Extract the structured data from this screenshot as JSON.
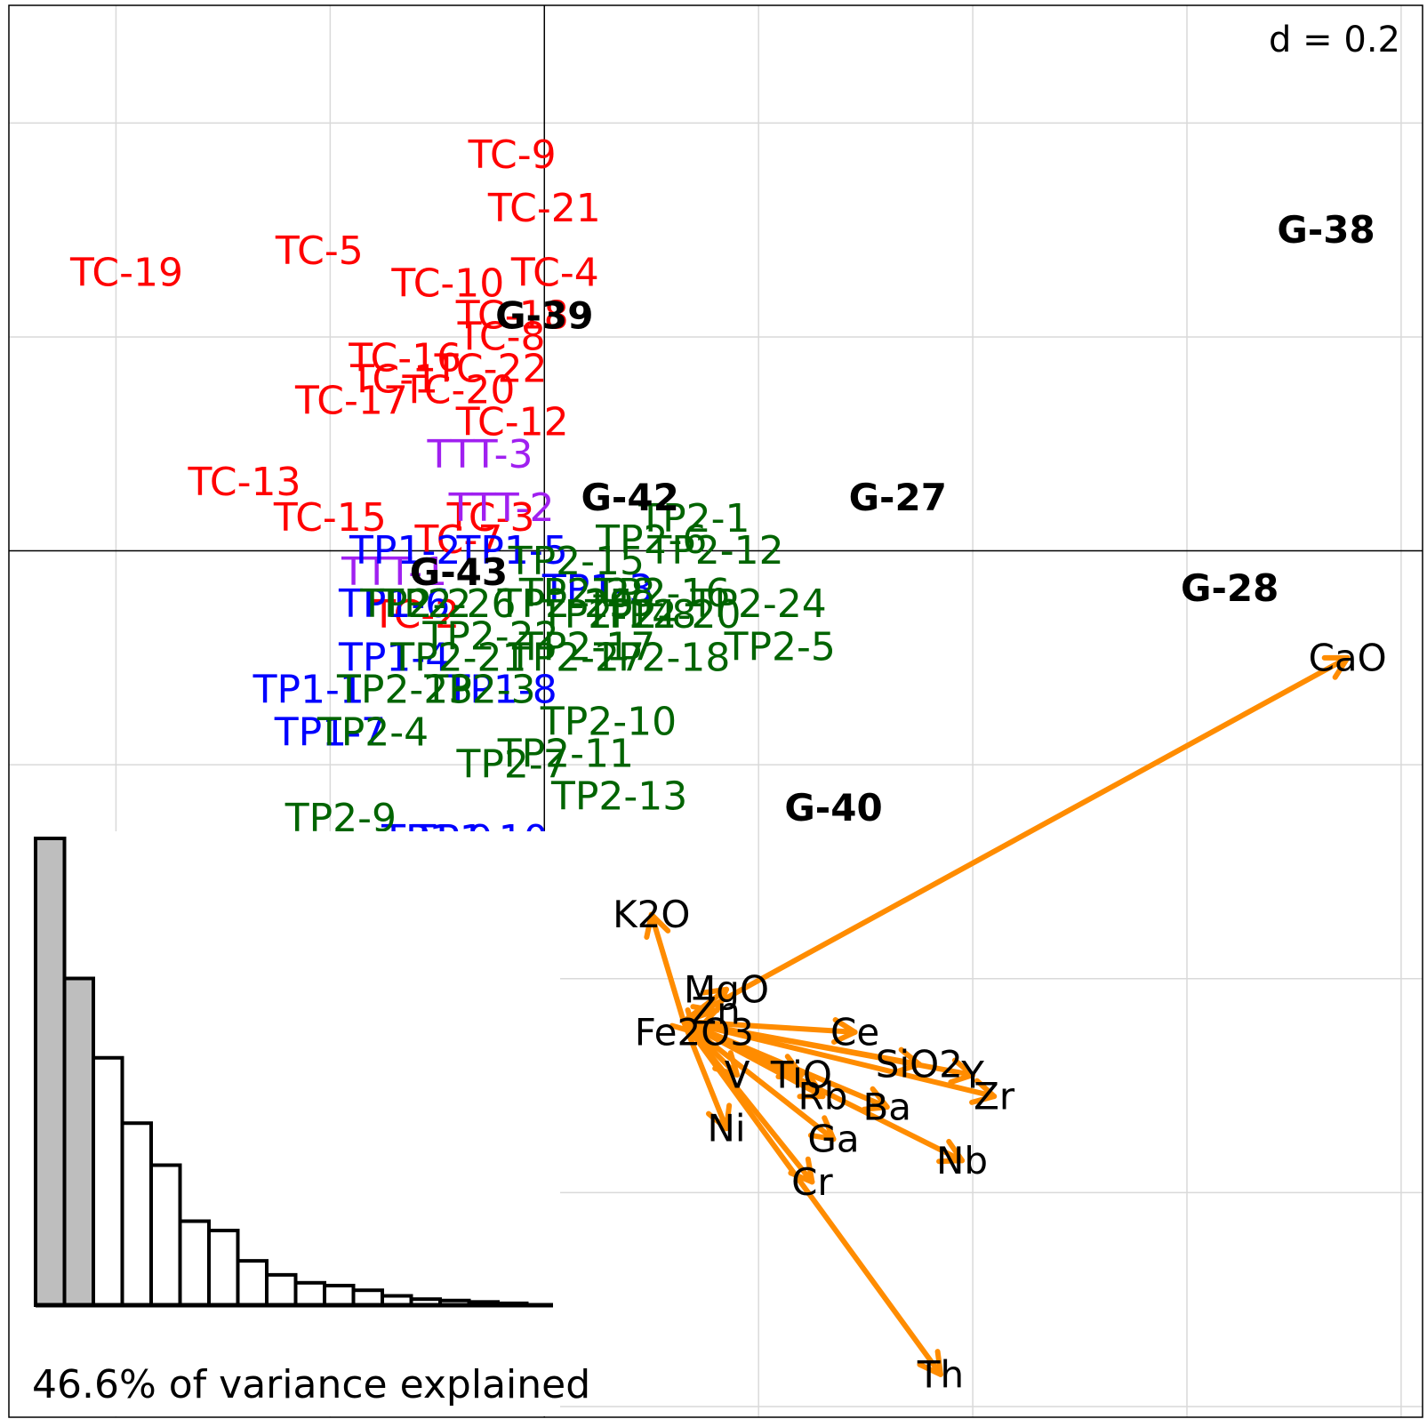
{
  "chart_data": {
    "type": "scatter",
    "title": "",
    "xlabel": "",
    "ylabel": "",
    "xlim": [
      -0.5,
      0.82
    ],
    "ylim": [
      -0.81,
      0.51
    ],
    "grid": true,
    "scale_label": "d = 0.2",
    "colors": {
      "TC": "#ff0000",
      "TTT": "#a020f0",
      "TP1": "#0000ff",
      "TP2": "#006400",
      "group": "#000000",
      "variable": "#000000",
      "arrow": "#ff8c00"
    },
    "points": [
      {
        "label": "TC-9",
        "x": -0.03,
        "y": 0.37,
        "series": "TC"
      },
      {
        "label": "TC-21",
        "x": 0.0,
        "y": 0.32,
        "series": "TC"
      },
      {
        "label": "TC-5",
        "x": -0.21,
        "y": 0.28,
        "series": "TC"
      },
      {
        "label": "TC-19",
        "x": -0.39,
        "y": 0.26,
        "series": "TC"
      },
      {
        "label": "TC-4",
        "x": 0.01,
        "y": 0.26,
        "series": "TC"
      },
      {
        "label": "TC-10",
        "x": -0.09,
        "y": 0.25,
        "series": "TC"
      },
      {
        "label": "TC-18",
        "x": -0.03,
        "y": 0.22,
        "series": "TC"
      },
      {
        "label": "TC-8",
        "x": -0.04,
        "y": 0.2,
        "series": "TC"
      },
      {
        "label": "TC-16",
        "x": -0.13,
        "y": 0.18,
        "series": "TC"
      },
      {
        "label": "TC-22",
        "x": -0.05,
        "y": 0.17,
        "series": "TC"
      },
      {
        "label": "TC-1",
        "x": -0.14,
        "y": 0.16,
        "series": "TC"
      },
      {
        "label": "TC-20",
        "x": -0.08,
        "y": 0.15,
        "series": "TC"
      },
      {
        "label": "TC-17",
        "x": -0.18,
        "y": 0.14,
        "series": "TC"
      },
      {
        "label": "TC-12",
        "x": -0.03,
        "y": 0.12,
        "series": "TC"
      },
      {
        "label": "TC-13",
        "x": -0.28,
        "y": 0.064,
        "series": "TC"
      },
      {
        "label": "TC-15",
        "x": -0.2,
        "y": 0.031,
        "series": "TC"
      },
      {
        "label": "TC-3",
        "x": -0.05,
        "y": 0.031,
        "series": "TC"
      },
      {
        "label": "TC-7",
        "x": -0.08,
        "y": 0.01,
        "series": "TC"
      },
      {
        "label": "TC-2",
        "x": -0.12,
        "y": -0.06,
        "series": "TC"
      },
      {
        "label": "TTT-3",
        "x": -0.06,
        "y": 0.09,
        "series": "TTT"
      },
      {
        "label": "TTT-2",
        "x": -0.04,
        "y": 0.04,
        "series": "TTT"
      },
      {
        "label": "TTT-1",
        "x": -0.14,
        "y": -0.02,
        "series": "TTT"
      },
      {
        "label": "TP1-1",
        "x": -0.22,
        "y": -0.13,
        "series": "TP1"
      },
      {
        "label": "TP1-2",
        "x": -0.13,
        "y": 0.0,
        "series": "TP1"
      },
      {
        "label": "TP1-3",
        "x": 0.05,
        "y": -0.036,
        "series": "TP1"
      },
      {
        "label": "TP1-4",
        "x": -0.14,
        "y": -0.1,
        "series": "TP1"
      },
      {
        "label": "TP1-5",
        "x": -0.03,
        "y": 0.0,
        "series": "TP1"
      },
      {
        "label": "TP1-6",
        "x": -0.14,
        "y": -0.05,
        "series": "TP1"
      },
      {
        "label": "TP1-7",
        "x": -0.2,
        "y": -0.17,
        "series": "TP1"
      },
      {
        "label": "TP1-8",
        "x": -0.04,
        "y": -0.13,
        "series": "TP1"
      },
      {
        "label": "TP1-9",
        "x": -0.1,
        "y": -0.27,
        "series": "TP1"
      },
      {
        "label": "TP1-10",
        "x": -0.06,
        "y": -0.27,
        "series": "TP1"
      },
      {
        "label": "TP2-1",
        "x": 0.14,
        "y": 0.03,
        "series": "TP2"
      },
      {
        "label": "TP2-2",
        "x": -0.12,
        "y": -0.05,
        "series": "TP2"
      },
      {
        "label": "TP2-3",
        "x": -0.06,
        "y": -0.13,
        "series": "TP2"
      },
      {
        "label": "TP2-4",
        "x": -0.16,
        "y": -0.17,
        "series": "TP2"
      },
      {
        "label": "TP2-5",
        "x": 0.22,
        "y": -0.09,
        "series": "TP2"
      },
      {
        "label": "TP2-6",
        "x": 0.1,
        "y": 0.01,
        "series": "TP2"
      },
      {
        "label": "TP2-7",
        "x": -0.03,
        "y": -0.2,
        "series": "TP2"
      },
      {
        "label": "TP2-8",
        "x": 0.09,
        "y": -0.06,
        "series": "TP2"
      },
      {
        "label": "TP2-9",
        "x": -0.19,
        "y": -0.25,
        "series": "TP2"
      },
      {
        "label": "TP2-10",
        "x": 0.06,
        "y": -0.16,
        "series": "TP2"
      },
      {
        "label": "TP2-11",
        "x": 0.02,
        "y": -0.19,
        "series": "TP2"
      },
      {
        "label": "TP2-12",
        "x": 0.16,
        "y": 0.0,
        "series": "TP2"
      },
      {
        "label": "TP2-13",
        "x": 0.07,
        "y": -0.23,
        "series": "TP2"
      },
      {
        "label": "TP2-14",
        "x": 0.06,
        "y": -0.06,
        "series": "TP2"
      },
      {
        "label": "TP2-15",
        "x": 0.03,
        "y": -0.01,
        "series": "TP2"
      },
      {
        "label": "TP2-16",
        "x": 0.11,
        "y": -0.04,
        "series": "TP2"
      },
      {
        "label": "TP2-17",
        "x": 0.04,
        "y": -0.09,
        "series": "TP2"
      },
      {
        "label": "TP2-18",
        "x": 0.11,
        "y": -0.1,
        "series": "TP2"
      },
      {
        "label": "TP2-19",
        "x": 0.02,
        "y": -0.05,
        "series": "TP2"
      },
      {
        "label": "TP2-20",
        "x": 0.12,
        "y": -0.06,
        "series": "TP2"
      },
      {
        "label": "TP2-21",
        "x": -0.08,
        "y": -0.1,
        "series": "TP2"
      },
      {
        "label": "TP2-22",
        "x": -0.05,
        "y": -0.08,
        "series": "TP2"
      },
      {
        "label": "TP2-23",
        "x": -0.13,
        "y": -0.13,
        "series": "TP2"
      },
      {
        "label": "TP2-24",
        "x": 0.2,
        "y": -0.05,
        "series": "TP2"
      },
      {
        "label": "TP2-25",
        "x": 0.02,
        "y": -0.05,
        "series": "TP2"
      },
      {
        "label": "TP2-26",
        "x": -0.09,
        "y": -0.05,
        "series": "TP2"
      },
      {
        "label": "TP2-27",
        "x": 0.03,
        "y": -0.1,
        "series": "TP2"
      },
      {
        "label": "TP2-28",
        "x": 0.04,
        "y": -0.04,
        "series": "TP2"
      }
    ],
    "groups": [
      {
        "label": "G-38",
        "x": 0.73,
        "y": 0.3
      },
      {
        "label": "G-39",
        "x": 0.0,
        "y": 0.22
      },
      {
        "label": "G-42",
        "x": 0.08,
        "y": 0.05
      },
      {
        "label": "G-27",
        "x": 0.33,
        "y": 0.05
      },
      {
        "label": "G-43",
        "x": -0.08,
        "y": -0.02
      },
      {
        "label": "G-28",
        "x": 0.64,
        "y": -0.035
      },
      {
        "label": "G-40",
        "x": 0.27,
        "y": -0.24
      }
    ],
    "arrow_origin": {
      "x": 0.13,
      "y": -0.44
    },
    "variables": [
      {
        "label": "CaO",
        "x": 0.75,
        "y": -0.1
      },
      {
        "label": "K2O",
        "x": 0.1,
        "y": -0.34
      },
      {
        "label": "MgO",
        "x": 0.17,
        "y": -0.41
      },
      {
        "label": "Zn",
        "x": 0.16,
        "y": -0.43
      },
      {
        "label": "Fe2O3",
        "x": 0.14,
        "y": -0.45
      },
      {
        "label": "Ce",
        "x": 0.29,
        "y": -0.45
      },
      {
        "label": "V",
        "x": 0.18,
        "y": -0.49
      },
      {
        "label": "TiO",
        "x": 0.24,
        "y": -0.49
      },
      {
        "label": "SiO2",
        "x": 0.35,
        "y": -0.48
      },
      {
        "label": "Y",
        "x": 0.4,
        "y": -0.49
      },
      {
        "label": "Zr",
        "x": 0.42,
        "y": -0.51
      },
      {
        "label": "Rb",
        "x": 0.26,
        "y": -0.51
      },
      {
        "label": "Ba",
        "x": 0.32,
        "y": -0.52
      },
      {
        "label": "Ni",
        "x": 0.17,
        "y": -0.54
      },
      {
        "label": "Ga",
        "x": 0.27,
        "y": -0.55
      },
      {
        "label": "Nb",
        "x": 0.39,
        "y": -0.57
      },
      {
        "label": "Cr",
        "x": 0.25,
        "y": -0.59
      },
      {
        "label": "Th",
        "x": 0.37,
        "y": -0.77
      }
    ],
    "eigenvalues": {
      "caption": "46.6% of variance explained",
      "values": [
        1.0,
        0.7,
        0.53,
        0.39,
        0.3,
        0.18,
        0.16,
        0.095,
        0.065,
        0.048,
        0.042,
        0.032,
        0.02,
        0.013,
        0.01,
        0.007,
        0.004
      ],
      "highlighted": 2
    }
  }
}
